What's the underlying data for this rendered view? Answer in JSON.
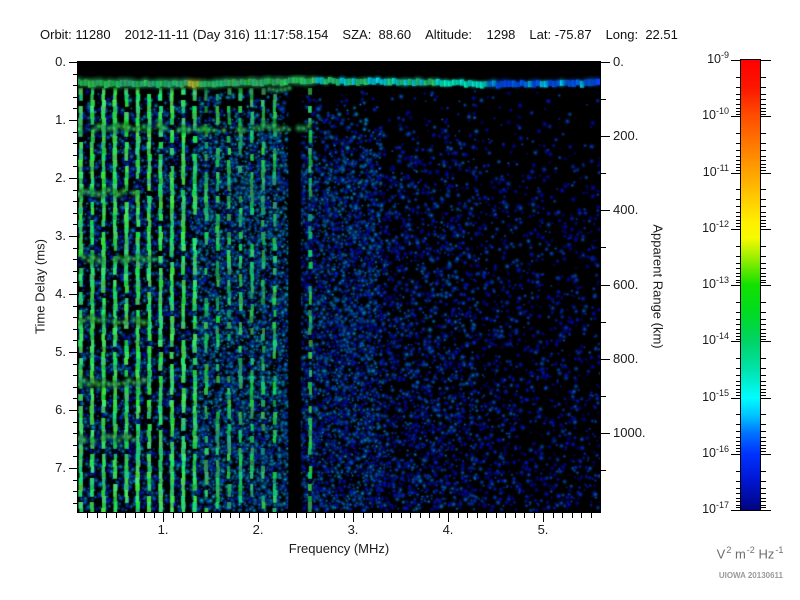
{
  "header": {
    "parts": [
      "Orbit: 11280",
      "2012-11-11 (Day 316) 11:17:58.154",
      "SZA:  88.60",
      "Altitude:    1298",
      "Lat: -75.87",
      "Long:  22.51"
    ]
  },
  "watermark": "UIOWA 20130611",
  "colors": {
    "plot_bg": "#000000",
    "text": "#1c1c1c",
    "muted_text": "#6e6e6e",
    "watermark_text": "#9a9a9a"
  },
  "chart_data": {
    "type": "heatmap",
    "x_axis": {
      "label": "Frequency (MHz)",
      "min": 0.105,
      "max": 5.6,
      "major_ticks": [
        1,
        2,
        3,
        4,
        5
      ],
      "major_tick_labels": [
        "1.",
        "2.",
        "3.",
        "4.",
        "5."
      ],
      "minor_tick_step": 0.1
    },
    "y_axis": {
      "label": "Time Delay (ms)",
      "min": 0,
      "max": 7.76,
      "major_ticks": [
        0,
        1,
        2,
        3,
        4,
        5,
        6,
        7
      ],
      "major_tick_labels": [
        "0.",
        "1.",
        "2.",
        "3.",
        "4.",
        "5.",
        "6.",
        "7."
      ],
      "minor_tick_step": 0.2,
      "direction": "down"
    },
    "y2_axis": {
      "label": "Apparent Range (km)",
      "min": 0,
      "max": 1213,
      "major_ticks": [
        0,
        200,
        400,
        600,
        800,
        1000
      ],
      "major_tick_labels": [
        "0.",
        "200.",
        "400.",
        "600.",
        "800.",
        "1000."
      ],
      "minor_tick_step": 100
    },
    "colorbar": {
      "scale": "log",
      "unit_parts": [
        [
          "V",
          "2"
        ],
        [
          "m",
          "-2"
        ],
        [
          "Hz",
          "-1"
        ]
      ],
      "decade_exponents": [
        "-9",
        "-10",
        "-11",
        "-12",
        "-13",
        "-14",
        "-15",
        "-16",
        "-17"
      ],
      "gradient": [
        [
          0,
          "#ff0000"
        ],
        [
          0.06,
          "#fb1600"
        ],
        [
          0.125,
          "#ff4d00"
        ],
        [
          0.19,
          "#ff7a00"
        ],
        [
          0.25,
          "#ffa300"
        ],
        [
          0.31,
          "#ffcc00"
        ],
        [
          0.36,
          "#ffef00"
        ],
        [
          0.395,
          "#f7fa00"
        ],
        [
          0.44,
          "#9aef00"
        ],
        [
          0.5,
          "#12e000"
        ],
        [
          0.56,
          "#00dc20"
        ],
        [
          0.625,
          "#00d465"
        ],
        [
          0.69,
          "#00e3ae"
        ],
        [
          0.75,
          "#00fdfd"
        ],
        [
          0.79,
          "#00c4ff"
        ],
        [
          0.83,
          "#0071ff"
        ],
        [
          0.875,
          "#0033ff"
        ],
        [
          0.93,
          "#0018d6"
        ],
        [
          1,
          "#000480"
        ]
      ]
    },
    "features": {
      "background": "#000000",
      "surface_echo_band": {
        "delay_range_ms": [
          0.2,
          0.5
        ],
        "freq_range_mhz": [
          0.105,
          5.6
        ],
        "hotspot_freq_mhz": 1.33,
        "bright_patch_freq_mhz": [
          3.95,
          4.42
        ],
        "sub_blob": {
          "freq_mhz": [
            2.12,
            2.35
          ],
          "delay_ms": [
            0.38,
            0.56
          ]
        }
      },
      "plasma_harmonic_stripes": {
        "first_freq_mhz": 0.135,
        "spacing_mhz": 0.12,
        "bright_count": 11,
        "total_count": 18,
        "extra_freqs_mhz": [
          2.55
        ]
      },
      "cyclotron_echo_bands": [
        {
          "delay_ms": 1.14,
          "freq_extent_mhz": 2.55,
          "strength": 1.0
        },
        {
          "delay_ms": 2.24,
          "freq_extent_mhz": 0.82,
          "strength": 0.8
        },
        {
          "delay_ms": 3.4,
          "freq_extent_mhz": 0.95,
          "strength": 0.85
        },
        {
          "delay_ms": 4.45,
          "freq_extent_mhz": 0.8,
          "strength": 0.8
        },
        {
          "delay_ms": 5.52,
          "freq_extent_mhz": 0.8,
          "strength": 0.75
        },
        {
          "delay_ms": 6.5,
          "freq_extent_mhz": 0.72,
          "strength": 0.6
        }
      ],
      "data_gap_freq_mhz": [
        2.33,
        2.44
      ],
      "scatter_regions": [
        {
          "freq_mhz": [
            0.105,
            1.32
          ],
          "density": 0.5,
          "brightness": 0.52
        },
        {
          "freq_mhz": [
            1.32,
            2.33
          ],
          "density": 0.8,
          "brightness": 0.6
        },
        {
          "freq_mhz": [
            2.33,
            2.44
          ],
          "density": 0.03,
          "brightness": 0.3
        },
        {
          "freq_mhz": [
            2.44,
            3.3
          ],
          "density": 0.72,
          "brightness": 0.48
        },
        {
          "freq_mhz": [
            3.3,
            4.3
          ],
          "density": 0.5,
          "brightness": 0.4
        },
        {
          "freq_mhz": [
            4.3,
            5.61
          ],
          "density": 0.33,
          "brightness": 0.33
        }
      ]
    },
    "render_seed": 20130611
  }
}
